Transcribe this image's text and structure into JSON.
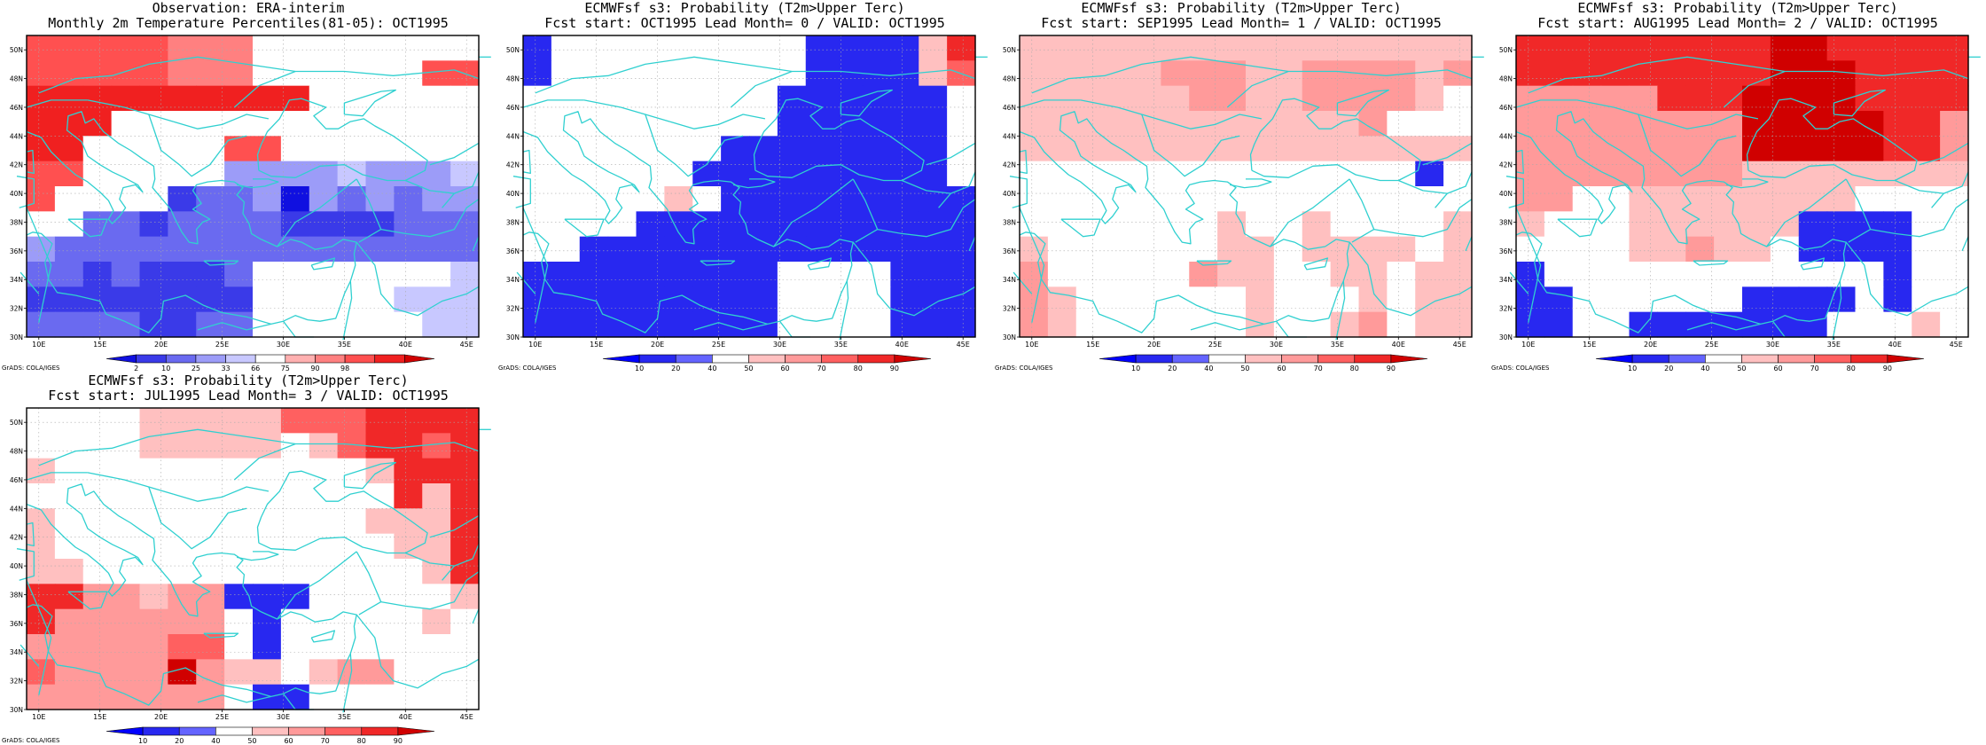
{
  "credit": "GrADS: COLA/IGES",
  "lon_ticks": [
    "10E",
    "15E",
    "20E",
    "25E",
    "30E",
    "35E",
    "40E",
    "45E"
  ],
  "lat_ticks": [
    "30N",
    "32N",
    "34N",
    "36N",
    "38N",
    "40N",
    "42N",
    "44N",
    "46N",
    "48N",
    "50N"
  ],
  "colors": {
    "coast": "#30d0d0",
    "percentile_palette": [
      "#1010e0",
      "#3a3ae8",
      "#6a6af0",
      "#9c9cf8",
      "#c8c8ff",
      "#ffffff",
      "#ffb0b0",
      "#ff8080",
      "#ff5050",
      "#f02020",
      "#d00000"
    ],
    "prob_palette": [
      "#0000ff",
      "#2828f0",
      "#6464ff",
      "#ffffff",
      "#ffc0c0",
      "#ff9a9a",
      "#ff6060",
      "#f02828",
      "#d00000"
    ]
  },
  "chart_data": [
    {
      "type": "heatmap",
      "title": "Observation: ERA-interim",
      "subtitle": "Monthly 2m Temperature Percentiles(81-05): OCT1995",
      "xlim": [
        9,
        46
      ],
      "ylim": [
        30,
        51
      ],
      "colorbar": {
        "labels": [
          "2",
          "10",
          "25",
          "33",
          "66",
          "75",
          "90",
          "98"
        ],
        "palette": "percentile"
      },
      "grid": [
        [
          8,
          8,
          8,
          8,
          8,
          7,
          7,
          7,
          5,
          5,
          5,
          5,
          5,
          5,
          5,
          5
        ],
        [
          8,
          8,
          8,
          8,
          8,
          7,
          7,
          7,
          5,
          5,
          5,
          5,
          5,
          5,
          8,
          8
        ],
        [
          9,
          9,
          9,
          9,
          9,
          9,
          9,
          9,
          9,
          9,
          5,
          5,
          5,
          5,
          5,
          5
        ],
        [
          9,
          9,
          9,
          5,
          5,
          5,
          5,
          5,
          5,
          5,
          5,
          5,
          5,
          5,
          5,
          5
        ],
        [
          9,
          9,
          5,
          5,
          5,
          5,
          5,
          8,
          8,
          5,
          5,
          5,
          5,
          5,
          5,
          5
        ],
        [
          8,
          8,
          5,
          5,
          5,
          5,
          5,
          3,
          3,
          3,
          3,
          4,
          3,
          3,
          3,
          4
        ],
        [
          8,
          5,
          5,
          5,
          5,
          1,
          2,
          2,
          3,
          0,
          3,
          2,
          3,
          2,
          3,
          3
        ],
        [
          5,
          5,
          2,
          2,
          1,
          2,
          2,
          2,
          2,
          1,
          1,
          1,
          1,
          2,
          2,
          2
        ],
        [
          3,
          2,
          2,
          2,
          2,
          2,
          2,
          2,
          2,
          2,
          2,
          2,
          2,
          2,
          2,
          2
        ],
        [
          2,
          2,
          1,
          2,
          1,
          1,
          1,
          2,
          5,
          5,
          5,
          5,
          5,
          5,
          5,
          4
        ],
        [
          1,
          1,
          1,
          1,
          1,
          1,
          1,
          1,
          5,
          5,
          5,
          5,
          5,
          4,
          4,
          4
        ],
        [
          2,
          2,
          2,
          2,
          1,
          1,
          2,
          2,
          5,
          5,
          5,
          5,
          5,
          5,
          4,
          4
        ]
      ]
    },
    {
      "type": "heatmap",
      "title": "ECMWFsf s3: Probability (T2m>Upper Terc)",
      "subtitle": "Fcst start: OCT1995   Lead Month= 0 / VALID: OCT1995",
      "xlim": [
        9,
        46
      ],
      "ylim": [
        30,
        51
      ],
      "colorbar": {
        "labels": [
          "10",
          "20",
          "40",
          "50",
          "60",
          "70",
          "80",
          "90"
        ],
        "palette": "prob"
      },
      "grid": [
        [
          1,
          3,
          3,
          3,
          3,
          3,
          3,
          3,
          3,
          3,
          1,
          1,
          1,
          1,
          4,
          7
        ],
        [
          1,
          3,
          3,
          3,
          3,
          3,
          3,
          3,
          3,
          3,
          1,
          1,
          1,
          1,
          4,
          6
        ],
        [
          3,
          3,
          3,
          3,
          3,
          3,
          3,
          3,
          3,
          1,
          1,
          1,
          1,
          1,
          1,
          3
        ],
        [
          3,
          3,
          3,
          3,
          3,
          3,
          3,
          3,
          3,
          1,
          1,
          1,
          1,
          1,
          1,
          3
        ],
        [
          3,
          3,
          3,
          3,
          3,
          3,
          3,
          1,
          1,
          1,
          1,
          1,
          1,
          1,
          1,
          3
        ],
        [
          3,
          3,
          3,
          3,
          3,
          3,
          1,
          1,
          1,
          1,
          1,
          1,
          1,
          1,
          1,
          3
        ],
        [
          3,
          3,
          3,
          3,
          3,
          4,
          3,
          1,
          1,
          1,
          1,
          1,
          1,
          1,
          1,
          1
        ],
        [
          3,
          3,
          3,
          3,
          1,
          1,
          1,
          1,
          1,
          1,
          1,
          1,
          1,
          1,
          1,
          1
        ],
        [
          3,
          3,
          1,
          1,
          1,
          1,
          1,
          1,
          1,
          1,
          1,
          1,
          1,
          1,
          1,
          1
        ],
        [
          1,
          1,
          1,
          1,
          1,
          1,
          1,
          1,
          1,
          3,
          3,
          3,
          3,
          1,
          1,
          1
        ],
        [
          1,
          1,
          1,
          1,
          1,
          1,
          1,
          1,
          1,
          3,
          3,
          3,
          3,
          1,
          1,
          1
        ],
        [
          1,
          1,
          1,
          1,
          1,
          1,
          1,
          1,
          1,
          3,
          3,
          3,
          3,
          1,
          1,
          1
        ]
      ]
    },
    {
      "type": "heatmap",
      "title": "ECMWFsf s3: Probability (T2m>Upper Terc)",
      "subtitle": "Fcst start: SEP1995   Lead Month= 1 / VALID: OCT1995",
      "xlim": [
        9,
        46
      ],
      "ylim": [
        30,
        51
      ],
      "colorbar": {
        "labels": [
          "10",
          "20",
          "40",
          "50",
          "60",
          "70",
          "80",
          "90"
        ],
        "palette": "prob"
      },
      "grid": [
        [
          4,
          4,
          4,
          4,
          4,
          4,
          4,
          4,
          4,
          4,
          4,
          4,
          4,
          4,
          4,
          4
        ],
        [
          4,
          4,
          4,
          4,
          4,
          5,
          5,
          5,
          4,
          4,
          5,
          5,
          5,
          5,
          4,
          5
        ],
        [
          4,
          4,
          4,
          4,
          4,
          4,
          5,
          5,
          4,
          4,
          5,
          5,
          5,
          5,
          4,
          3
        ],
        [
          4,
          4,
          4,
          4,
          4,
          4,
          4,
          4,
          4,
          4,
          4,
          4,
          5,
          3,
          3,
          3
        ],
        [
          4,
          4,
          4,
          4,
          4,
          4,
          4,
          4,
          4,
          4,
          4,
          4,
          4,
          4,
          4,
          4
        ],
        [
          3,
          3,
          3,
          3,
          3,
          3,
          3,
          3,
          3,
          3,
          3,
          3,
          3,
          3,
          1,
          3
        ],
        [
          3,
          3,
          3,
          3,
          3,
          3,
          3,
          3,
          3,
          3,
          3,
          3,
          3,
          3,
          3,
          3
        ],
        [
          3,
          3,
          3,
          3,
          3,
          3,
          3,
          4,
          3,
          3,
          4,
          3,
          3,
          3,
          3,
          4
        ],
        [
          4,
          3,
          3,
          3,
          3,
          3,
          3,
          4,
          4,
          3,
          4,
          4,
          4,
          4,
          3,
          4
        ],
        [
          5,
          3,
          3,
          3,
          3,
          3,
          5,
          4,
          4,
          3,
          3,
          4,
          4,
          3,
          4,
          4
        ],
        [
          5,
          4,
          3,
          3,
          3,
          3,
          3,
          3,
          4,
          3,
          3,
          3,
          4,
          3,
          4,
          4
        ],
        [
          5,
          4,
          3,
          3,
          3,
          3,
          3,
          3,
          4,
          3,
          3,
          4,
          5,
          3,
          4,
          4
        ]
      ]
    },
    {
      "type": "heatmap",
      "title": "ECMWFsf s3: Probability (T2m>Upper Terc)",
      "subtitle": "Fcst start: AUG1995   Lead Month= 2 / VALID: OCT1995",
      "xlim": [
        9,
        46
      ],
      "ylim": [
        30,
        51
      ],
      "colorbar": {
        "labels": [
          "10",
          "20",
          "40",
          "50",
          "60",
          "70",
          "80",
          "90"
        ],
        "palette": "prob"
      },
      "grid": [
        [
          7,
          7,
          7,
          7,
          7,
          7,
          7,
          7,
          7,
          8,
          8,
          7,
          7,
          7,
          7,
          7
        ],
        [
          7,
          7,
          7,
          7,
          7,
          7,
          7,
          7,
          7,
          8,
          8,
          8,
          7,
          7,
          7,
          7
        ],
        [
          5,
          5,
          5,
          5,
          5,
          7,
          7,
          7,
          8,
          8,
          8,
          8,
          7,
          7,
          7,
          7
        ],
        [
          5,
          5,
          5,
          5,
          5,
          5,
          5,
          5,
          8,
          8,
          8,
          8,
          8,
          7,
          7,
          5
        ],
        [
          5,
          5,
          5,
          5,
          5,
          5,
          5,
          5,
          8,
          8,
          8,
          8,
          8,
          7,
          7,
          5
        ],
        [
          5,
          5,
          5,
          5,
          5,
          5,
          5,
          5,
          4,
          4,
          4,
          4,
          4,
          4,
          4,
          4
        ],
        [
          5,
          5,
          3,
          3,
          4,
          4,
          4,
          4,
          4,
          4,
          4,
          4,
          3,
          3,
          3,
          3
        ],
        [
          4,
          3,
          3,
          3,
          4,
          4,
          4,
          4,
          4,
          4,
          1,
          1,
          1,
          1,
          3,
          3
        ],
        [
          3,
          3,
          3,
          3,
          4,
          4,
          5,
          4,
          4,
          3,
          1,
          1,
          1,
          1,
          3,
          3
        ],
        [
          1,
          3,
          3,
          3,
          3,
          3,
          3,
          3,
          3,
          3,
          3,
          3,
          3,
          1,
          3,
          3
        ],
        [
          1,
          1,
          3,
          3,
          3,
          3,
          3,
          3,
          1,
          1,
          1,
          1,
          3,
          1,
          3,
          3
        ],
        [
          1,
          1,
          3,
          3,
          1,
          1,
          1,
          1,
          1,
          1,
          1,
          3,
          3,
          3,
          4,
          3
        ]
      ]
    },
    {
      "type": "heatmap",
      "title": "ECMWFsf s3: Probability (T2m>Upper Terc)",
      "subtitle": "Fcst start: JUL1995   Lead Month= 3 / VALID: OCT1995",
      "xlim": [
        9,
        46
      ],
      "ylim": [
        30,
        51
      ],
      "colorbar": {
        "labels": [
          "10",
          "20",
          "40",
          "50",
          "60",
          "70",
          "80",
          "90"
        ],
        "palette": "prob"
      },
      "grid": [
        [
          3,
          3,
          3,
          3,
          4,
          4,
          4,
          4,
          4,
          6,
          6,
          6,
          7,
          7,
          7,
          7
        ],
        [
          3,
          3,
          3,
          3,
          4,
          4,
          4,
          4,
          4,
          3,
          4,
          6,
          7,
          7,
          6,
          7
        ],
        [
          4,
          3,
          3,
          3,
          3,
          3,
          3,
          3,
          3,
          3,
          3,
          3,
          4,
          7,
          7,
          7
        ],
        [
          3,
          3,
          3,
          3,
          3,
          3,
          3,
          3,
          3,
          3,
          3,
          3,
          3,
          7,
          4,
          7
        ],
        [
          4,
          3,
          3,
          3,
          3,
          3,
          3,
          3,
          3,
          3,
          3,
          3,
          4,
          4,
          4,
          7
        ],
        [
          4,
          3,
          3,
          3,
          3,
          3,
          3,
          3,
          3,
          3,
          3,
          3,
          3,
          4,
          4,
          7
        ],
        [
          4,
          4,
          3,
          3,
          3,
          3,
          3,
          3,
          3,
          3,
          3,
          3,
          3,
          3,
          4,
          7
        ],
        [
          7,
          7,
          5,
          5,
          4,
          5,
          5,
          1,
          1,
          1,
          3,
          3,
          3,
          3,
          3,
          4
        ],
        [
          7,
          5,
          5,
          5,
          5,
          5,
          5,
          3,
          1,
          3,
          3,
          3,
          3,
          3,
          4,
          3
        ],
        [
          5,
          5,
          5,
          5,
          5,
          6,
          6,
          3,
          1,
          3,
          3,
          3,
          3,
          3,
          3,
          3
        ],
        [
          6,
          5,
          5,
          5,
          5,
          8,
          5,
          4,
          4,
          3,
          4,
          5,
          5,
          3,
          3,
          3
        ],
        [
          5,
          5,
          5,
          5,
          5,
          5,
          5,
          3,
          1,
          1,
          3,
          3,
          3,
          3,
          3,
          3
        ]
      ]
    }
  ]
}
